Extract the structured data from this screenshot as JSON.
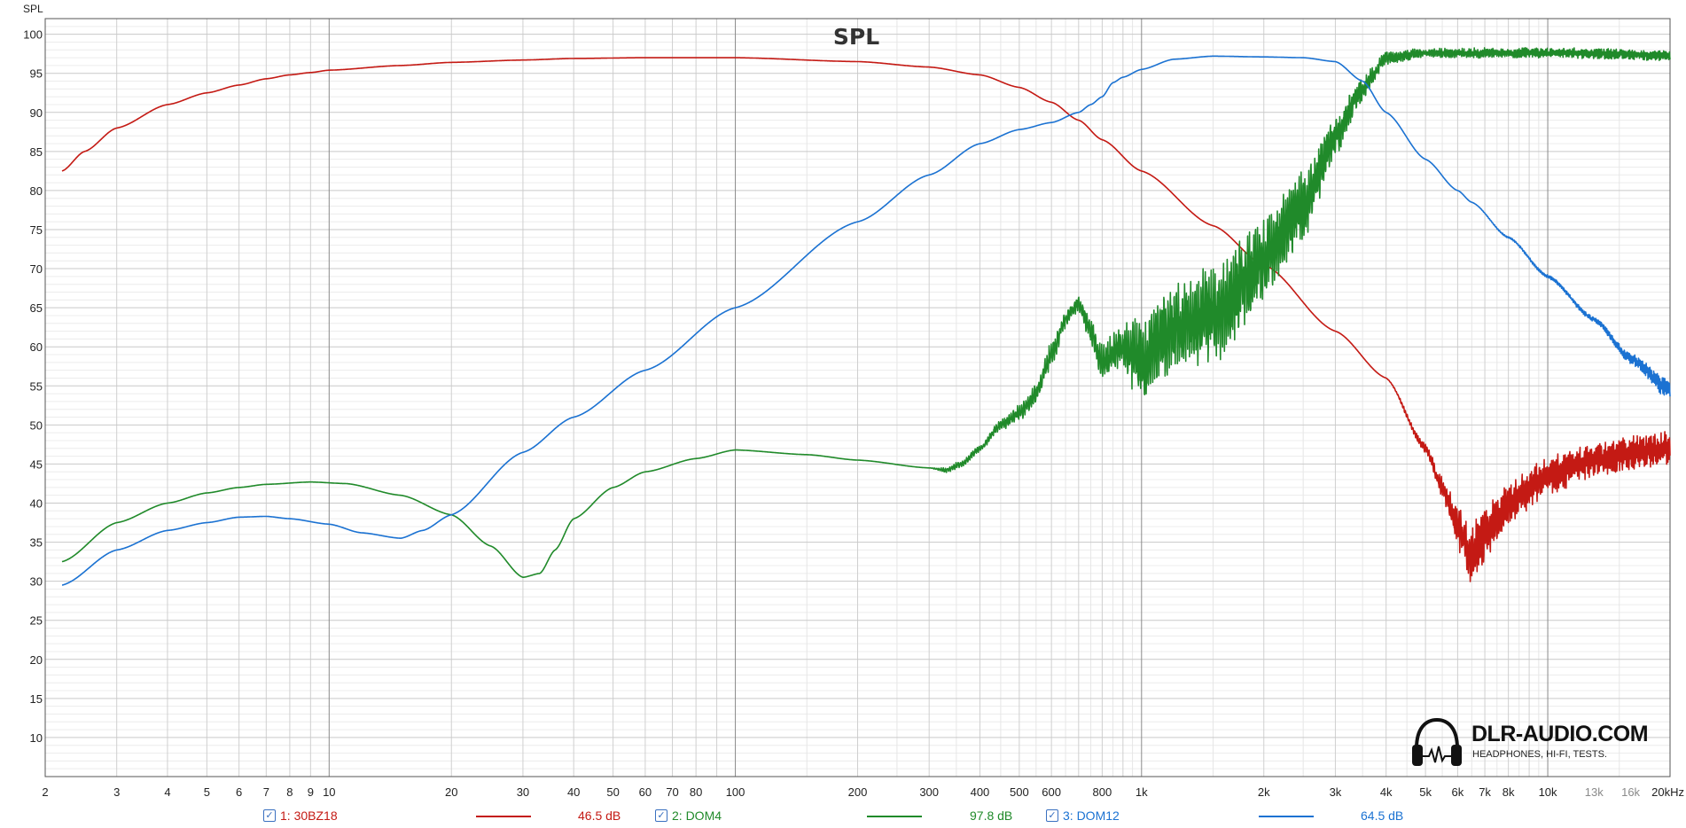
{
  "chart_data": {
    "type": "line",
    "title": "SPL",
    "ylabel": "SPL",
    "xscale": "log",
    "xlim": [
      2,
      20000
    ],
    "ylim": [
      5,
      102
    ],
    "grid": true,
    "legend_position": "bottom",
    "x_ticks": [
      {
        "v": 2,
        "label": "2"
      },
      {
        "v": 3,
        "label": "3"
      },
      {
        "v": 4,
        "label": "4"
      },
      {
        "v": 5,
        "label": "5"
      },
      {
        "v": 6,
        "label": "6"
      },
      {
        "v": 7,
        "label": "7"
      },
      {
        "v": 8,
        "label": "8"
      },
      {
        "v": 9,
        "label": "9"
      },
      {
        "v": 10,
        "label": "10"
      },
      {
        "v": 20,
        "label": "20"
      },
      {
        "v": 30,
        "label": "30"
      },
      {
        "v": 40,
        "label": "40"
      },
      {
        "v": 50,
        "label": "50"
      },
      {
        "v": 60,
        "label": "60"
      },
      {
        "v": 70,
        "label": "70"
      },
      {
        "v": 80,
        "label": "80"
      },
      {
        "v": 100,
        "label": "100"
      },
      {
        "v": 200,
        "label": "200"
      },
      {
        "v": 300,
        "label": "300"
      },
      {
        "v": 400,
        "label": "400"
      },
      {
        "v": 500,
        "label": "500"
      },
      {
        "v": 600,
        "label": "600"
      },
      {
        "v": 800,
        "label": "800"
      },
      {
        "v": 1000,
        "label": "1k"
      },
      {
        "v": 2000,
        "label": "2k"
      },
      {
        "v": 3000,
        "label": "3k"
      },
      {
        "v": 4000,
        "label": "4k"
      },
      {
        "v": 5000,
        "label": "5k"
      },
      {
        "v": 6000,
        "label": "6k"
      },
      {
        "v": 7000,
        "label": "7k"
      },
      {
        "v": 8000,
        "label": "8k"
      },
      {
        "v": 10000,
        "label": "10k"
      },
      {
        "v": 13000,
        "label": "13k",
        "muted": true
      },
      {
        "v": 16000,
        "label": "16k",
        "muted": true
      },
      {
        "v": 20000,
        "label": "20kHz"
      }
    ],
    "y_ticks": [
      10,
      15,
      20,
      25,
      30,
      35,
      40,
      45,
      50,
      55,
      60,
      65,
      70,
      75,
      80,
      85,
      90,
      95,
      100
    ],
    "series": [
      {
        "name": "1: 30BZ18",
        "color": "#c41a14",
        "legend_value": "46.5 dB",
        "x": [
          2.2,
          2.5,
          3,
          4,
          5,
          6,
          7,
          8,
          9,
          10,
          15,
          20,
          30,
          40,
          60,
          100,
          200,
          300,
          400,
          500,
          600,
          700,
          800,
          1000,
          1500,
          2000,
          3000,
          4000,
          5000,
          5500,
          6000,
          6500,
          7000,
          8000,
          10000,
          13000,
          16000,
          20000
        ],
        "y": [
          82.5,
          85,
          88,
          91,
          92.5,
          93.5,
          94.3,
          94.8,
          95.1,
          95.4,
          96,
          96.4,
          96.7,
          96.9,
          97.0,
          97.0,
          96.5,
          95.8,
          94.8,
          93.2,
          91.3,
          89,
          86.5,
          82.5,
          75.5,
          70.5,
          62,
          56,
          47,
          42,
          37,
          33,
          36,
          40,
          43.5,
          45.5,
          46.5,
          47
        ],
        "noise": [
          0,
          0,
          0,
          0,
          0,
          0,
          0,
          0,
          0,
          0,
          0,
          0,
          0,
          0,
          0,
          0,
          0,
          0,
          0,
          0,
          0,
          0,
          0,
          0,
          0,
          0,
          0,
          0,
          0.6,
          1.2,
          2.5,
          4,
          3,
          2.5,
          2.2,
          2,
          2,
          2
        ]
      },
      {
        "name": "2: DOM4",
        "color": "#208a2a",
        "legend_value": "97.8 dB",
        "x": [
          2.2,
          3,
          4,
          5,
          6,
          7,
          9,
          11,
          15,
          20,
          25,
          30,
          33,
          36,
          40,
          50,
          60,
          80,
          100,
          150,
          200,
          300,
          330,
          360,
          400,
          450,
          500,
          550,
          600,
          650,
          700,
          750,
          800,
          900,
          1000,
          1100,
          1300,
          1500,
          2000,
          2500,
          3000,
          3500,
          4000,
          5000,
          7000,
          10000,
          15000,
          20000
        ],
        "y": [
          32.5,
          37.5,
          40,
          41.3,
          42,
          42.4,
          42.7,
          42.5,
          41,
          38.5,
          34.5,
          30.5,
          31,
          34,
          38,
          42,
          44,
          45.7,
          46.8,
          46.2,
          45.5,
          44.5,
          44.2,
          45,
          47,
          50,
          51.5,
          54,
          59,
          63.5,
          65.5,
          62,
          58,
          60,
          58,
          61,
          63,
          64,
          71,
          78,
          87,
          93,
          97,
          97.6,
          97.6,
          97.6,
          97.5,
          97.2
        ],
        "noise": [
          0,
          0,
          0,
          0,
          0,
          0,
          0,
          0,
          0,
          0,
          0,
          0,
          0,
          0,
          0,
          0,
          0,
          0,
          0,
          0,
          0,
          0,
          0.3,
          0.4,
          0.4,
          0.6,
          1,
          1.2,
          1.5,
          1,
          0.8,
          1.5,
          2,
          3,
          5,
          5,
          5.5,
          6,
          5,
          4,
          2.5,
          1.5,
          0.8,
          0.5,
          0.6,
          0.6,
          0.6,
          0.6
        ]
      },
      {
        "name": "3: DOM12",
        "color": "#1b72d2",
        "legend_value": "64.5 dB",
        "x": [
          2.2,
          3,
          4,
          5,
          6,
          7,
          8,
          10,
          12,
          15,
          17,
          20,
          30,
          40,
          60,
          100,
          200,
          300,
          400,
          500,
          600,
          700,
          750,
          800,
          850,
          900,
          1000,
          1200,
          1500,
          2000,
          2500,
          3000,
          3500,
          4000,
          5000,
          6000,
          6500,
          8000,
          10000,
          13000,
          16000,
          20000
        ],
        "y": [
          29.5,
          34,
          36.5,
          37.5,
          38.2,
          38.3,
          38,
          37.3,
          36.2,
          35.5,
          36.5,
          38.5,
          46.5,
          51,
          57,
          65,
          76,
          82,
          86,
          87.8,
          88.7,
          90,
          91,
          92,
          93.8,
          94.5,
          95.5,
          96.8,
          97.2,
          97.1,
          97,
          96.5,
          94,
          90,
          84,
          80,
          78.5,
          74,
          69,
          63.5,
          58.5,
          54.5
        ],
        "noise": [
          0,
          0,
          0,
          0,
          0,
          0,
          0,
          0,
          0,
          0,
          0,
          0,
          0,
          0,
          0,
          0,
          0,
          0,
          0,
          0,
          0,
          0,
          0,
          0,
          0,
          0,
          0,
          0,
          0,
          0,
          0,
          0,
          0,
          0,
          0,
          0,
          0,
          0.1,
          0.2,
          0.3,
          0.6,
          1.2
        ]
      }
    ]
  },
  "legend": [
    {
      "checked": true,
      "name": "1: 30BZ18",
      "value": "46.5 dB",
      "color": "#c41a14"
    },
    {
      "checked": true,
      "name": "2: DOM4",
      "value": "97.8 dB",
      "color": "#208a2a"
    },
    {
      "checked": true,
      "name": "3: DOM12",
      "value": "64.5 dB",
      "color": "#1b72d2"
    }
  ],
  "logo": {
    "title": "DLR-AUDIO.COM",
    "subtitle": "HEADPHONES, HI-FI, TESTS.",
    "icon": "headphones-icon"
  }
}
